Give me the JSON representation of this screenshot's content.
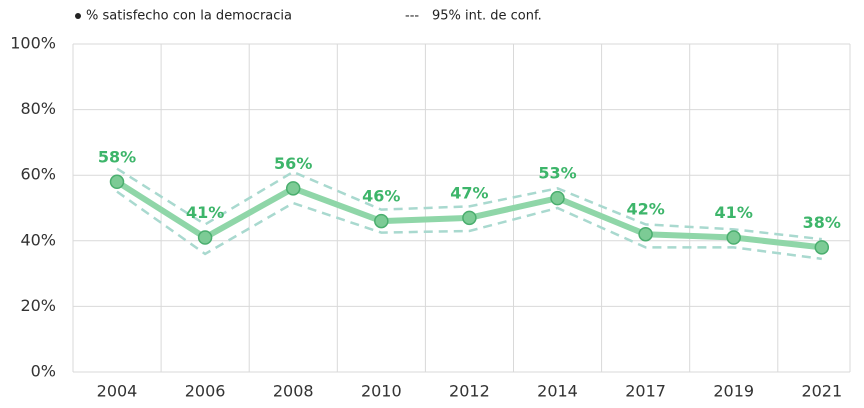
{
  "chart_data": {
    "type": "line",
    "categories": [
      "2004",
      "2006",
      "2008",
      "2010",
      "2012",
      "2014",
      "2017",
      "2019",
      "2021"
    ],
    "series": [
      {
        "name": "% satisfecho con la democracia",
        "color": "#8fd6a8",
        "values": [
          58,
          41,
          56,
          46,
          47,
          53,
          42,
          41,
          38
        ],
        "value_labels": [
          "58%",
          "41%",
          "56%",
          "46%",
          "47%",
          "53%",
          "42%",
          "41%",
          "38%"
        ]
      }
    ],
    "confidence_interval": {
      "name": "95% int. de conf.",
      "color": "#a9d9cf",
      "upper": [
        62,
        45,
        61,
        49.5,
        50.5,
        56,
        45,
        43.5,
        40.5
      ],
      "lower": [
        55,
        36,
        51.5,
        42.5,
        43,
        50,
        38,
        38,
        34.5
      ]
    },
    "ylim": [
      0,
      100
    ],
    "yticks": [
      {
        "value": 0,
        "label": "0%"
      },
      {
        "value": 20,
        "label": "20%"
      },
      {
        "value": 40,
        "label": "40%"
      },
      {
        "value": 60,
        "label": "60%"
      },
      {
        "value": 80,
        "label": "80%"
      },
      {
        "value": 100,
        "label": "100%"
      }
    ],
    "grid": true
  }
}
